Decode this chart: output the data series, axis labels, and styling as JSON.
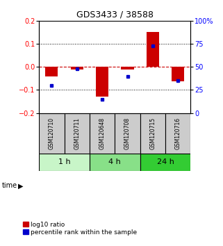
{
  "title": "GDS3433 / 38588",
  "samples": [
    "GSM120710",
    "GSM120711",
    "GSM120648",
    "GSM120708",
    "GSM120715",
    "GSM120716"
  ],
  "log10_ratio": [
    -0.04,
    -0.012,
    -0.13,
    -0.01,
    0.152,
    -0.063
  ],
  "percentile_rank": [
    30,
    48,
    15,
    40,
    73,
    35
  ],
  "groups": [
    {
      "label": "1 h",
      "indices": [
        0,
        1
      ],
      "color": "#c8f5c8"
    },
    {
      "label": "4 h",
      "indices": [
        2,
        3
      ],
      "color": "#88e088"
    },
    {
      "label": "24 h",
      "indices": [
        4,
        5
      ],
      "color": "#33cc33"
    }
  ],
  "ylim_left": [
    -0.2,
    0.2
  ],
  "ylim_right": [
    0,
    100
  ],
  "yticks_left": [
    -0.2,
    -0.1,
    0.0,
    0.1,
    0.2
  ],
  "yticks_right": [
    0,
    25,
    50,
    75,
    100
  ],
  "bar_color": "#cc0000",
  "dot_color": "#0000cc",
  "zero_line_color": "#cc0000",
  "grid_color": "#000000",
  "bar_width": 0.5,
  "legend_items": [
    "log10 ratio",
    "percentile rank within the sample"
  ],
  "time_label": "time",
  "background_color": "#ffffff",
  "plot_bg": "#ffffff",
  "label_area_color": "#cccccc"
}
